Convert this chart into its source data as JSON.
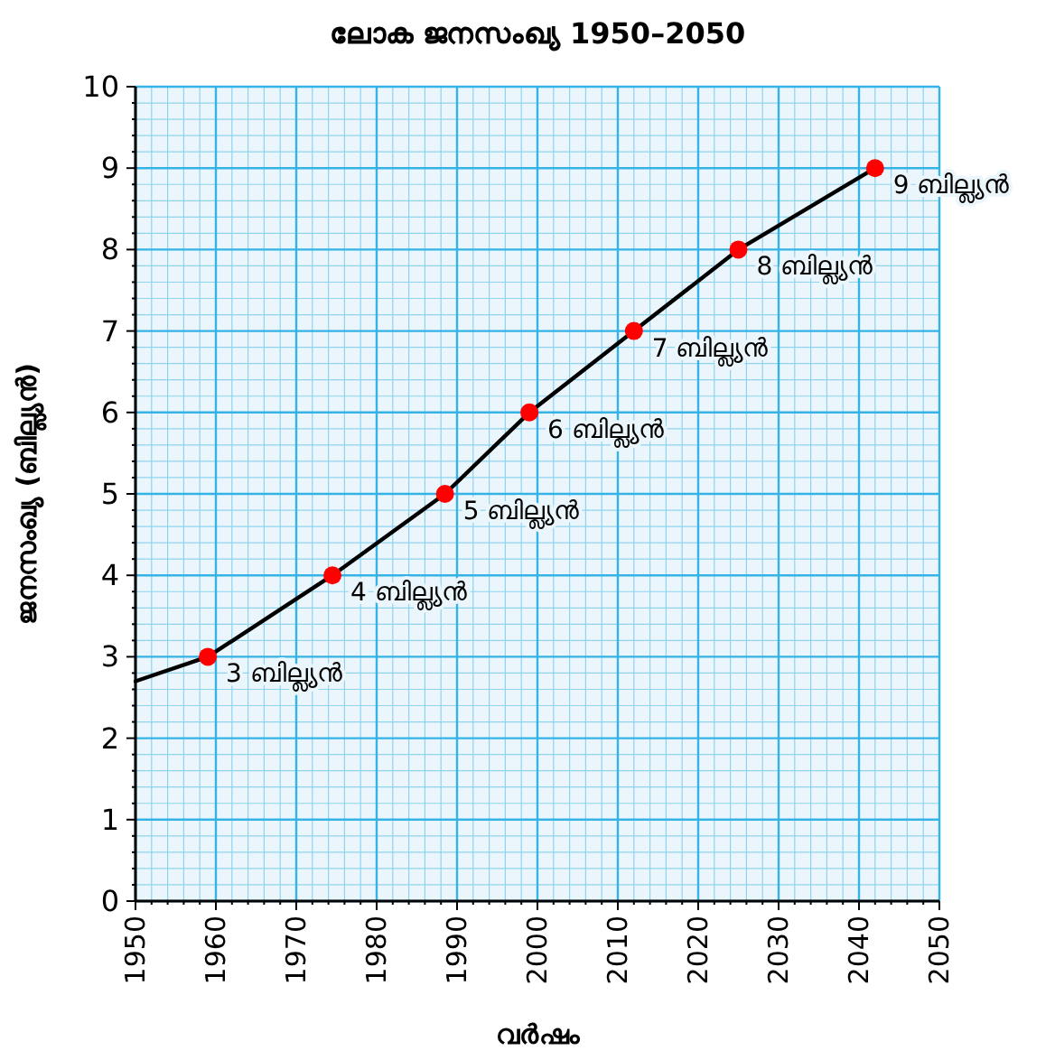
{
  "chart_data": {
    "type": "line",
    "title": "ലോക ജനസംഖ്യ 1950–2050",
    "xlabel": "വർഷം",
    "ylabel": "ജനസംഖ്യ (ബില്ല്യൻ)",
    "xlim": [
      1950,
      2050
    ],
    "xticks": [
      1950,
      {
        "value": 1952,
        "label": null
      },
      {
        "value": 1954,
        "label": null
      },
      {
        "value": 1956,
        "label": null
      },
      {
        "value": 1958,
        "label": null
      },
      1960,
      {
        "value": 1962,
        "label": null
      },
      {
        "value": 1964,
        "label": null
      },
      {
        "value": 1966,
        "label": null
      },
      {
        "value": 1968,
        "label": null
      },
      1970,
      {
        "value": 1972,
        "label": null
      },
      {
        "value": 1974,
        "label": null
      },
      {
        "value": 1976,
        "label": null
      },
      {
        "value": 1978,
        "label": null
      },
      1980,
      {
        "value": 1982,
        "label": null
      },
      {
        "value": 1984,
        "label": null
      },
      {
        "value": 1986,
        "label": null
      },
      {
        "value": 1988,
        "label": null
      },
      1990,
      {
        "value": 1992,
        "label": null
      },
      {
        "value": 1994,
        "label": null
      },
      {
        "value": 1996,
        "label": null
      },
      {
        "value": 1998,
        "label": null
      },
      2000,
      {
        "value": 2002,
        "label": null
      },
      {
        "value": 2004,
        "label": null
      },
      {
        "value": 2006,
        "label": null
      },
      {
        "value": 2008,
        "label": null
      },
      2010,
      {
        "value": 2012,
        "label": null
      },
      {
        "value": 2014,
        "label": null
      },
      {
        "value": 2016,
        "label": null
      },
      {
        "value": 2018,
        "label": null
      },
      2020,
      {
        "value": 2022,
        "label": null
      },
      {
        "value": 2024,
        "label": null
      },
      {
        "value": 2026,
        "label": null
      },
      {
        "value": 2028,
        "label": null
      },
      2030,
      {
        "value": 2032,
        "label": null
      },
      {
        "value": 2034,
        "label": null
      },
      {
        "value": 2036,
        "label": null
      },
      {
        "value": 2038,
        "label": null
      },
      2040,
      {
        "value": 2042,
        "label": null
      },
      {
        "value": 2044,
        "label": null
      },
      {
        "value": 2046,
        "label": null
      },
      {
        "value": 2048,
        "label": null
      },
      2050
    ],
    "ylim": [
      0,
      10
    ],
    "yticks": [
      0,
      {
        "value": 0.2,
        "label": null
      },
      {
        "value": 0.4,
        "label": null
      },
      {
        "value": 0.6,
        "label": null
      },
      {
        "value": 0.8,
        "label": null
      },
      1,
      {
        "value": 1.2,
        "label": null
      },
      {
        "value": 1.4,
        "label": null
      },
      {
        "value": 1.6,
        "label": null
      },
      {
        "value": 1.8,
        "label": null
      },
      2,
      {
        "value": 2.2,
        "label": null
      },
      {
        "value": 2.4,
        "label": null
      },
      {
        "value": 2.6,
        "label": null
      },
      {
        "value": 2.8,
        "label": null
      },
      3,
      {
        "value": 3.2,
        "label": null
      },
      {
        "value": 3.4,
        "label": null
      },
      {
        "value": 3.6,
        "label": null
      },
      {
        "value": 3.8,
        "label": null
      },
      4,
      {
        "value": 4.2,
        "label": null
      },
      {
        "value": 4.4,
        "label": null
      },
      {
        "value": 4.6,
        "label": null
      },
      {
        "value": 4.8,
        "label": null
      },
      5,
      {
        "value": 5.2,
        "label": null
      },
      {
        "value": 5.4,
        "label": null
      },
      {
        "value": 5.6,
        "label": null
      },
      {
        "value": 5.8,
        "label": null
      },
      6,
      {
        "value": 6.2,
        "label": null
      },
      {
        "value": 6.4,
        "label": null
      },
      {
        "value": 6.6,
        "label": null
      },
      {
        "value": 6.8,
        "label": null
      },
      7,
      {
        "value": 7.2,
        "label": null
      },
      {
        "value": 7.4,
        "label": null
      },
      {
        "value": 7.6,
        "label": null
      },
      {
        "value": 7.8,
        "label": null
      },
      8,
      {
        "value": 8.2,
        "label": null
      },
      {
        "value": 8.4,
        "label": null
      },
      {
        "value": 8.6,
        "label": null
      },
      {
        "value": 8.8,
        "label": null
      },
      9,
      {
        "value": 9.2,
        "label": null
      },
      {
        "value": 9.4,
        "label": null
      },
      {
        "value": 9.6,
        "label": null
      },
      {
        "value": 9.8,
        "label": null
      },
      10
    ],
    "grid": true,
    "series": [
      {
        "type": "line",
        "color": "#000000",
        "marker": "none",
        "x": [
          1950,
          1959,
          1974.5,
          1988.5,
          1999,
          2012,
          2025,
          2042
        ],
        "values": [
          2.7,
          3,
          4,
          5,
          6,
          7,
          8,
          9
        ]
      },
      {
        "type": "scatter",
        "color": "#ff0000",
        "marker": "circle",
        "x": [
          1959,
          1974.5,
          1988.5,
          1999,
          2012,
          2025,
          2042
        ],
        "values": [
          3,
          4,
          5,
          6,
          7,
          8,
          9
        ],
        "value_labels": [
          "3 ബില്ല്യൻ",
          "4 ബില്ല്യൻ",
          "5 ബില്ല്യൻ",
          "6 ബില്ല്യൻ",
          "7 ബില്ല്യൻ",
          "8 ബില്ല്യൻ",
          "9 ബില്ല്യൻ"
        ]
      }
    ]
  }
}
